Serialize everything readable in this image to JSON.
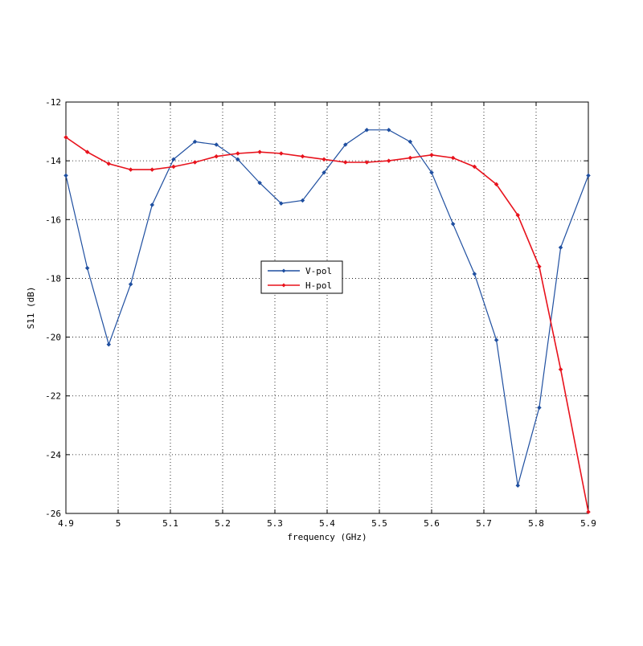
{
  "chart_data": {
    "type": "line",
    "title": "",
    "xlabel": "frequency (GHz)",
    "ylabel": "S11 (dB)",
    "xlim": [
      4.9,
      5.9
    ],
    "ylim": [
      -26,
      -12
    ],
    "xticks": [
      4.9,
      5.0,
      5.1,
      5.2,
      5.3,
      5.4,
      5.5,
      5.6,
      5.7,
      5.8,
      5.9
    ],
    "xtick_labels": [
      "4.9",
      "5",
      "5.1",
      "5.2",
      "5.3",
      "5.4",
      "5.5",
      "5.6",
      "5.7",
      "5.8",
      "5.9"
    ],
    "yticks": [
      -26,
      -24,
      -22,
      -20,
      -18,
      -16,
      -14,
      -12
    ],
    "ytick_labels": [
      "-26",
      "-24",
      "-22",
      "-20",
      "-18",
      "-16",
      "-14",
      "-12"
    ],
    "grid": true,
    "grid_style": "dotted",
    "legend": "center-left",
    "series": [
      {
        "name": "V-pol",
        "color": "#1f4fa0",
        "x": [
          4.9,
          4.941,
          4.982,
          5.024,
          5.065,
          5.106,
          5.147,
          5.188,
          5.229,
          5.271,
          5.312,
          5.353,
          5.394,
          5.435,
          5.476,
          5.518,
          5.559,
          5.6,
          5.641,
          5.682,
          5.724,
          5.765,
          5.806,
          5.847,
          5.9
        ],
        "y": [
          -14.5,
          -17.65,
          -20.25,
          -18.2,
          -15.5,
          -13.95,
          -13.35,
          -13.45,
          -13.95,
          -14.75,
          -15.45,
          -15.35,
          -14.4,
          -13.45,
          -12.95,
          -12.95,
          -13.35,
          -14.4,
          -16.15,
          -17.85,
          -20.1,
          -25.05,
          -22.4,
          -16.95,
          -14.5
        ]
      },
      {
        "name": "H-pol",
        "color": "#e8121c",
        "x": [
          4.9,
          4.941,
          4.982,
          5.024,
          5.065,
          5.106,
          5.147,
          5.188,
          5.229,
          5.271,
          5.312,
          5.353,
          5.394,
          5.435,
          5.476,
          5.518,
          5.559,
          5.6,
          5.641,
          5.682,
          5.724,
          5.765,
          5.806,
          5.847,
          5.9
        ],
        "y": [
          -13.2,
          -13.7,
          -14.1,
          -14.3,
          -14.3,
          -14.2,
          -14.05,
          -13.85,
          -13.75,
          -13.7,
          -13.75,
          -13.85,
          -13.95,
          -14.05,
          -14.05,
          -14.0,
          -13.9,
          -13.8,
          -13.9,
          -14.2,
          -14.8,
          -15.85,
          -17.6,
          -21.1,
          -25.95
        ]
      }
    ]
  }
}
